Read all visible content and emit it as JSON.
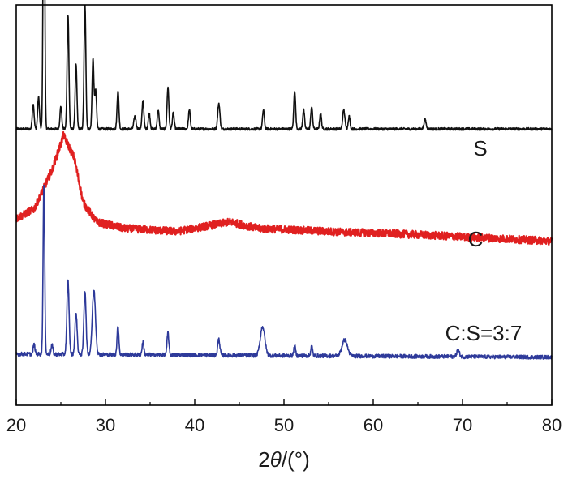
{
  "chart_data": {
    "type": "line",
    "title": "",
    "xlabel": {
      "prefix": "2",
      "symbol": "θ",
      "unit": "/(°)"
    },
    "ylabel": "",
    "xlim": [
      20,
      80
    ],
    "xticks": [
      "20",
      "30",
      "40",
      "50",
      "60",
      "70",
      "80"
    ],
    "yticks_shown": false,
    "grid": false,
    "note": "Stacked XRD patterns (arbitrary intensity, vertically offset). Series values are normalized intensity 0-1 above each baseline; offsets are data offsets in a 0-100 intensity scale.",
    "series": [
      {
        "name": "S",
        "label": "S",
        "color": "#111111",
        "offset": 69,
        "noise": 0.004,
        "baseline": [
          [
            20,
            0.0
          ],
          [
            80,
            0.0
          ]
        ],
        "peaks": [
          {
            "x": 21.9,
            "h": 0.08,
            "w": 0.1
          },
          {
            "x": 22.5,
            "h": 0.1,
            "w": 0.1
          },
          {
            "x": 23.1,
            "h": 1.0,
            "w": 0.09
          },
          {
            "x": 25.0,
            "h": 0.07,
            "w": 0.1
          },
          {
            "x": 25.8,
            "h": 0.36,
            "w": 0.1
          },
          {
            "x": 26.7,
            "h": 0.2,
            "w": 0.1
          },
          {
            "x": 27.7,
            "h": 0.39,
            "w": 0.1
          },
          {
            "x": 28.6,
            "h": 0.22,
            "w": 0.1
          },
          {
            "x": 28.9,
            "h": 0.12,
            "w": 0.1
          },
          {
            "x": 31.4,
            "h": 0.12,
            "w": 0.1
          },
          {
            "x": 33.3,
            "h": 0.04,
            "w": 0.12
          },
          {
            "x": 34.2,
            "h": 0.09,
            "w": 0.1
          },
          {
            "x": 34.9,
            "h": 0.05,
            "w": 0.1
          },
          {
            "x": 35.9,
            "h": 0.06,
            "w": 0.1
          },
          {
            "x": 37.0,
            "h": 0.13,
            "w": 0.1
          },
          {
            "x": 37.6,
            "h": 0.05,
            "w": 0.1
          },
          {
            "x": 39.4,
            "h": 0.06,
            "w": 0.1
          },
          {
            "x": 42.7,
            "h": 0.08,
            "w": 0.12
          },
          {
            "x": 47.7,
            "h": 0.06,
            "w": 0.1
          },
          {
            "x": 51.2,
            "h": 0.12,
            "w": 0.1
          },
          {
            "x": 52.2,
            "h": 0.06,
            "w": 0.1
          },
          {
            "x": 53.1,
            "h": 0.07,
            "w": 0.1
          },
          {
            "x": 54.1,
            "h": 0.05,
            "w": 0.1
          },
          {
            "x": 56.7,
            "h": 0.06,
            "w": 0.12
          },
          {
            "x": 57.3,
            "h": 0.04,
            "w": 0.1
          },
          {
            "x": 65.8,
            "h": 0.03,
            "w": 0.12
          }
        ]
      },
      {
        "name": "C",
        "label": "C",
        "color": "#e02020",
        "offset": 41,
        "noise": 0.012,
        "baseline": [
          [
            20,
            0.07
          ],
          [
            22,
            0.1
          ],
          [
            24,
            0.22
          ],
          [
            25.3,
            0.33
          ],
          [
            26.5,
            0.26
          ],
          [
            27.5,
            0.12
          ],
          [
            29,
            0.06
          ],
          [
            32,
            0.04
          ],
          [
            38,
            0.03
          ],
          [
            42,
            0.05
          ],
          [
            44,
            0.06
          ],
          [
            47,
            0.04
          ],
          [
            55,
            0.03
          ],
          [
            65,
            0.02
          ],
          [
            80,
            0.0
          ]
        ],
        "peaks": []
      },
      {
        "name": "C:S=3:7",
        "label": "C:S=3:7",
        "color": "#2e3a9a",
        "offset": 12,
        "noise": 0.006,
        "baseline": [
          [
            20,
            0.01
          ],
          [
            80,
            0.0
          ]
        ],
        "peaks": [
          {
            "x": 22.0,
            "h": 0.03,
            "w": 0.1
          },
          {
            "x": 23.1,
            "h": 0.53,
            "w": 0.09
          },
          {
            "x": 24.0,
            "h": 0.03,
            "w": 0.1
          },
          {
            "x": 25.8,
            "h": 0.23,
            "w": 0.12
          },
          {
            "x": 26.7,
            "h": 0.13,
            "w": 0.12
          },
          {
            "x": 27.7,
            "h": 0.2,
            "w": 0.12
          },
          {
            "x": 28.7,
            "h": 0.2,
            "w": 0.18
          },
          {
            "x": 31.4,
            "h": 0.09,
            "w": 0.1
          },
          {
            "x": 34.2,
            "h": 0.04,
            "w": 0.1
          },
          {
            "x": 37.0,
            "h": 0.07,
            "w": 0.1
          },
          {
            "x": 42.7,
            "h": 0.05,
            "w": 0.12
          },
          {
            "x": 47.6,
            "h": 0.09,
            "w": 0.25
          },
          {
            "x": 51.2,
            "h": 0.03,
            "w": 0.1
          },
          {
            "x": 53.1,
            "h": 0.03,
            "w": 0.1
          },
          {
            "x": 56.8,
            "h": 0.05,
            "w": 0.3
          },
          {
            "x": 69.5,
            "h": 0.02,
            "w": 0.15
          }
        ]
      }
    ],
    "intensity_scale": 100,
    "series_scale": [
      [
        80,
        15
      ],
      [
        80,
        10
      ],
      [
        80,
        7
      ]
    ]
  }
}
